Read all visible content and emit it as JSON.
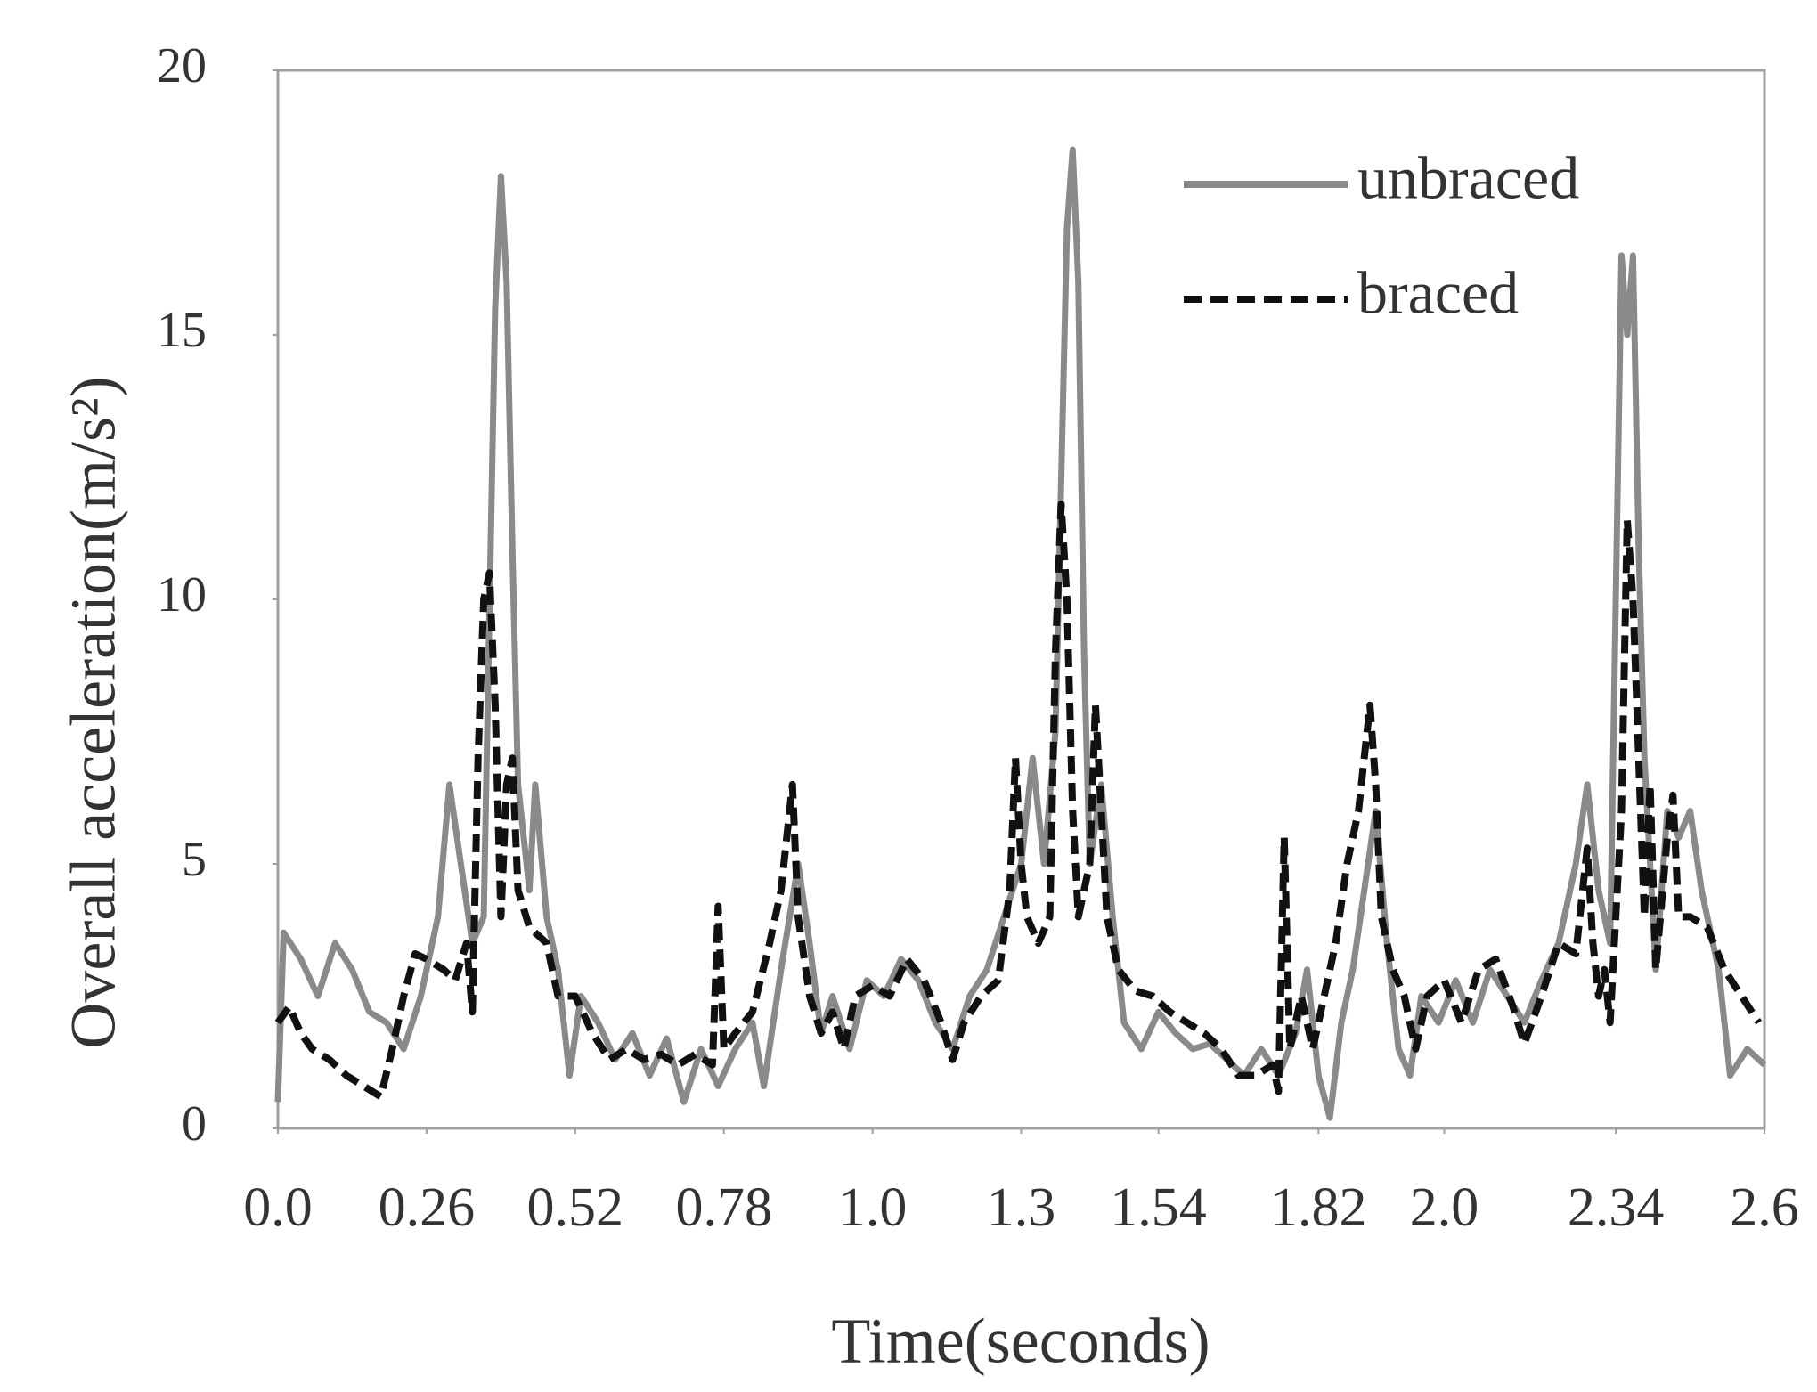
{
  "chart_data": {
    "type": "line",
    "x_label": "Time(seconds)",
    "y_label": "Overall acceleration(m/s²)",
    "xlim": [
      0,
      2.6
    ],
    "ylim": [
      0,
      20
    ],
    "xticks": [
      {
        "value": 0,
        "label": "0.0"
      },
      0.26,
      0.52,
      0.78,
      {
        "value": 1.04,
        "label": "1.0"
      },
      1.3,
      1.54,
      1.82,
      {
        "value": 2.04,
        "label": "2.0"
      },
      2.34,
      2.6
    ],
    "yticks": [
      0,
      5,
      10,
      15,
      20
    ],
    "legend": "upper right",
    "series": [
      {
        "name": "unbraced",
        "color": "#8a8a8a",
        "dash": false,
        "x": [
          0.0,
          0.01,
          0.04,
          0.07,
          0.1,
          0.13,
          0.16,
          0.19,
          0.22,
          0.25,
          0.28,
          0.3,
          0.32,
          0.34,
          0.36,
          0.38,
          0.39,
          0.4,
          0.41,
          0.42,
          0.44,
          0.45,
          0.47,
          0.49,
          0.51,
          0.53,
          0.56,
          0.59,
          0.62,
          0.65,
          0.68,
          0.71,
          0.74,
          0.77,
          0.8,
          0.83,
          0.85,
          0.88,
          0.91,
          0.93,
          0.95,
          0.97,
          1.0,
          1.03,
          1.06,
          1.09,
          1.12,
          1.15,
          1.18,
          1.21,
          1.24,
          1.27,
          1.3,
          1.32,
          1.34,
          1.36,
          1.38,
          1.39,
          1.4,
          1.41,
          1.42,
          1.44,
          1.46,
          1.48,
          1.51,
          1.54,
          1.57,
          1.6,
          1.63,
          1.66,
          1.69,
          1.72,
          1.75,
          1.78,
          1.8,
          1.82,
          1.84,
          1.86,
          1.88,
          1.9,
          1.92,
          1.94,
          1.96,
          1.98,
          2.0,
          2.03,
          2.06,
          2.09,
          2.12,
          2.15,
          2.18,
          2.21,
          2.24,
          2.27,
          2.29,
          2.31,
          2.33,
          2.35,
          2.36,
          2.37,
          2.38,
          2.39,
          2.41,
          2.43,
          2.45,
          2.47,
          2.49,
          2.52,
          2.54,
          2.57,
          2.6
        ],
        "values": [
          0.5,
          3.7,
          3.2,
          2.5,
          3.5,
          3.0,
          2.2,
          2.0,
          1.5,
          2.5,
          4.0,
          6.5,
          5.0,
          3.5,
          4.0,
          15.5,
          18.0,
          16.0,
          11.0,
          6.5,
          4.5,
          6.5,
          4.0,
          3.0,
          1.0,
          2.5,
          2.0,
          1.3,
          1.8,
          1.0,
          1.7,
          0.5,
          1.5,
          0.8,
          1.5,
          2.0,
          0.8,
          3.0,
          5.0,
          3.5,
          1.8,
          2.5,
          1.5,
          2.8,
          2.5,
          3.2,
          2.8,
          2.0,
          1.5,
          2.5,
          3.0,
          4.0,
          5.0,
          7.0,
          5.0,
          7.5,
          17.0,
          18.5,
          16.0,
          9.0,
          5.0,
          6.5,
          4.0,
          2.0,
          1.5,
          2.2,
          1.8,
          1.5,
          1.6,
          1.3,
          1.0,
          1.5,
          1.0,
          1.8,
          3.0,
          1.0,
          0.2,
          2.0,
          3.0,
          4.5,
          6.0,
          3.5,
          1.5,
          1.0,
          2.5,
          2.0,
          2.8,
          2.0,
          3.0,
          2.5,
          2.0,
          2.8,
          3.5,
          5.0,
          6.5,
          4.5,
          3.5,
          16.5,
          15.0,
          16.5,
          11.0,
          7.0,
          3.0,
          6.0,
          5.5,
          6.0,
          4.5,
          3.0,
          1.0,
          1.5,
          1.2
        ]
      },
      {
        "name": "braced",
        "color": "#111111",
        "dash": true,
        "x": [
          0.0,
          0.02,
          0.04,
          0.06,
          0.09,
          0.12,
          0.15,
          0.18,
          0.2,
          0.22,
          0.24,
          0.26,
          0.29,
          0.31,
          0.33,
          0.34,
          0.35,
          0.36,
          0.37,
          0.38,
          0.39,
          0.4,
          0.41,
          0.42,
          0.44,
          0.47,
          0.49,
          0.52,
          0.55,
          0.58,
          0.61,
          0.64,
          0.67,
          0.7,
          0.73,
          0.76,
          0.77,
          0.78,
          0.8,
          0.83,
          0.86,
          0.88,
          0.9,
          0.91,
          0.93,
          0.95,
          0.97,
          0.99,
          1.01,
          1.04,
          1.07,
          1.1,
          1.13,
          1.16,
          1.18,
          1.2,
          1.23,
          1.26,
          1.28,
          1.29,
          1.3,
          1.31,
          1.33,
          1.35,
          1.36,
          1.37,
          1.38,
          1.39,
          1.4,
          1.42,
          1.43,
          1.44,
          1.45,
          1.47,
          1.5,
          1.53,
          1.56,
          1.59,
          1.62,
          1.65,
          1.68,
          1.71,
          1.74,
          1.75,
          1.76,
          1.77,
          1.79,
          1.81,
          1.83,
          1.85,
          1.87,
          1.89,
          1.91,
          1.92,
          1.93,
          1.95,
          1.97,
          1.99,
          2.01,
          2.04,
          2.07,
          2.1,
          2.13,
          2.16,
          2.18,
          2.21,
          2.24,
          2.27,
          2.29,
          2.3,
          2.31,
          2.32,
          2.33,
          2.35,
          2.36,
          2.37,
          2.38,
          2.39,
          2.4,
          2.41,
          2.43,
          2.44,
          2.45,
          2.47,
          2.5,
          2.53,
          2.56,
          2.59
        ],
        "values": [
          2.0,
          2.3,
          1.8,
          1.5,
          1.3,
          1.0,
          0.8,
          0.6,
          1.5,
          2.5,
          3.3,
          3.2,
          3.0,
          2.8,
          3.5,
          2.2,
          7.0,
          10.0,
          10.5,
          8.0,
          4.0,
          6.5,
          7.0,
          4.5,
          3.8,
          3.5,
          2.5,
          2.5,
          1.8,
          1.3,
          1.5,
          1.3,
          1.4,
          1.2,
          1.4,
          1.2,
          4.2,
          1.5,
          1.8,
          2.2,
          3.5,
          4.5,
          6.5,
          4.0,
          2.5,
          1.8,
          2.2,
          1.5,
          2.5,
          2.7,
          2.5,
          3.2,
          2.8,
          2.0,
          1.3,
          2.0,
          2.5,
          2.8,
          4.5,
          7.0,
          5.0,
          4.0,
          3.5,
          4.0,
          9.0,
          11.8,
          10.0,
          6.0,
          4.0,
          5.0,
          8.0,
          6.0,
          4.0,
          3.0,
          2.6,
          2.5,
          2.2,
          2.0,
          1.8,
          1.5,
          1.0,
          1.0,
          1.2,
          0.7,
          5.5,
          1.5,
          2.5,
          1.5,
          2.5,
          3.5,
          5.0,
          6.0,
          8.0,
          6.5,
          4.0,
          3.0,
          2.5,
          1.5,
          2.5,
          2.8,
          2.0,
          3.0,
          3.2,
          2.3,
          1.6,
          2.5,
          3.5,
          3.3,
          5.3,
          3.5,
          2.5,
          3.0,
          2.0,
          6.0,
          11.5,
          10.0,
          7.0,
          4.0,
          6.5,
          3.0,
          5.5,
          6.3,
          4.0,
          4.0,
          3.8,
          3.0,
          2.5,
          2.0
        ]
      }
    ]
  }
}
